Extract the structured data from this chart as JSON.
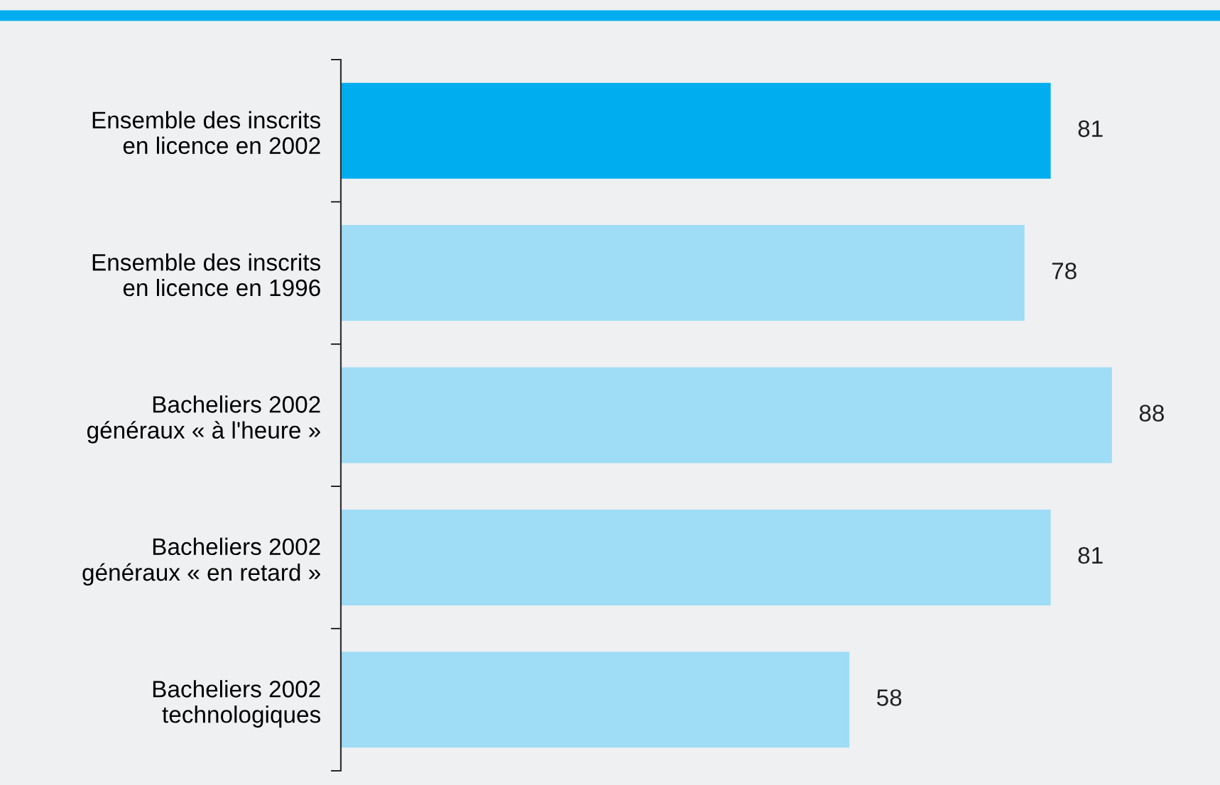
{
  "chart_data": {
    "type": "bar",
    "orientation": "horizontal",
    "categories": [
      "Ensemble des inscrits\nen licence en 2002",
      "Ensemble des inscrits\nen licence en 1996",
      "Bacheliers 2002\ngénéraux « à l'heure »",
      "Bacheliers 2002\ngénéraux « en retard »",
      "Bacheliers 2002\ntechnologiques"
    ],
    "values": [
      81,
      78,
      88,
      81,
      58
    ],
    "colors": [
      "#00aeef",
      "#9fdcf5",
      "#9fdcf5",
      "#9fdcf5",
      "#9fdcf5"
    ],
    "data_labels": true,
    "grid": false
  }
}
